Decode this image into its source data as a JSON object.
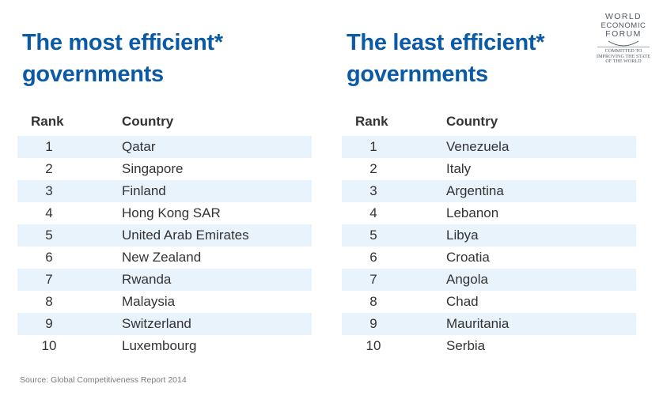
{
  "logo": {
    "line1": "WORLD",
    "line2": "ECONOMIC",
    "line3": "FORUM",
    "tagline_1": "COMMITTED TO",
    "tagline_2": "IMPROVING THE STATE",
    "tagline_3": "OF THE WORLD"
  },
  "most": {
    "title": "The most efficient*\ngovernments",
    "rank_header": "Rank",
    "country_header": "Country",
    "rows": [
      {
        "rank": "1",
        "country": "Qatar"
      },
      {
        "rank": "2",
        "country": "Singapore"
      },
      {
        "rank": "3",
        "country": "Finland"
      },
      {
        "rank": "4",
        "country": "Hong Kong SAR"
      },
      {
        "rank": "5",
        "country": "United Arab Emirates"
      },
      {
        "rank": "6",
        "country": "New Zealand"
      },
      {
        "rank": "7",
        "country": "Rwanda"
      },
      {
        "rank": "8",
        "country": "Malaysia"
      },
      {
        "rank": "9",
        "country": "Switzerland"
      },
      {
        "rank": "10",
        "country": "Luxembourg"
      }
    ]
  },
  "least": {
    "title": "The least efficient*\ngovernments",
    "rank_header": "Rank",
    "country_header": "Country",
    "rows": [
      {
        "rank": "1",
        "country": "Venezuela"
      },
      {
        "rank": "2",
        "country": "Italy"
      },
      {
        "rank": "3",
        "country": "Argentina"
      },
      {
        "rank": "4",
        "country": "Lebanon"
      },
      {
        "rank": "5",
        "country": "Libya"
      },
      {
        "rank": "6",
        "country": "Croatia"
      },
      {
        "rank": "7",
        "country": "Angola"
      },
      {
        "rank": "8",
        "country": "Chad"
      },
      {
        "rank": "9",
        "country": "Mauritania"
      },
      {
        "rank": "10",
        "country": "Serbia"
      }
    ]
  },
  "source": "Source: Global Competitiveness Report 2014",
  "colors": {
    "title": "#0b5aa5",
    "stripe": "#e9f3fb"
  }
}
